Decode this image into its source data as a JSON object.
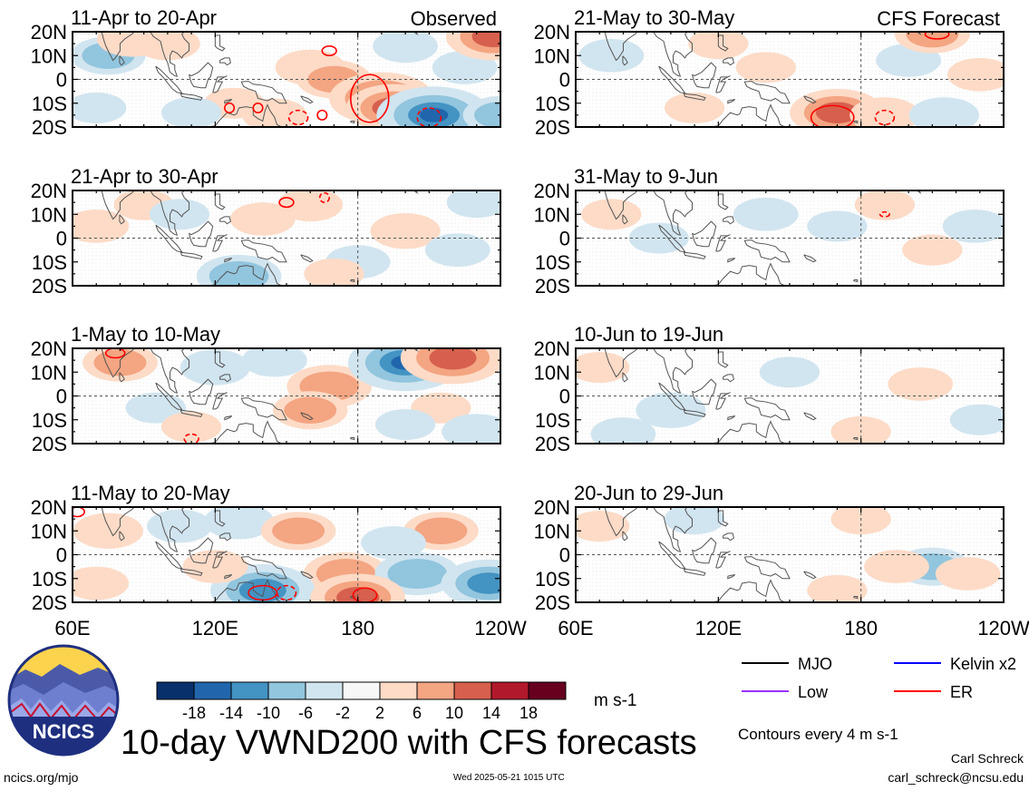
{
  "observed_label": "Observed",
  "forecast_label": "CFS Forecast",
  "main_title": "10-day VWND200 with CFS forecasts",
  "units": "m s-1",
  "contour_note": "Contours every 4 m s-1",
  "colorbar_labels": [
    "-18",
    "-14",
    "-10",
    "-6",
    "-2",
    "2",
    "6",
    "10",
    "14",
    "18"
  ],
  "colorbar_colors": [
    "#08306b",
    "#2166ac",
    "#4393c3",
    "#92c5de",
    "#d1e5f0",
    "#f7f7f7",
    "#fddbc7",
    "#f4a582",
    "#d6604d",
    "#b2182b",
    "#67001f"
  ],
  "legend": [
    {
      "label": "MJO",
      "color": "#000000"
    },
    {
      "label": "Kelvin x2",
      "color": "#0000ff"
    },
    {
      "label": "Low",
      "color": "#9933ff"
    },
    {
      "label": "ER",
      "color": "#ff0000"
    }
  ],
  "credits": {
    "logo_text": "NCICS",
    "site": "ncics.org/mjo",
    "author": "Carl Schreck",
    "email": "carl_schreck@ncsu.edu",
    "date": "Wed 2025-05-21 1015 UTC"
  },
  "chart_data": [
    {
      "type": "heatmap",
      "title": "11-Apr to 20-Apr",
      "variable": "VWND200",
      "units": "m s-1",
      "x_ticks": [
        "60E",
        "120E",
        "180",
        "120W"
      ],
      "y_ticks": [
        "20N",
        "10N",
        "0",
        "10S",
        "20S"
      ],
      "xlim_deg_east": [
        60,
        240
      ],
      "ylim_deg": [
        -20,
        20
      ],
      "anomalies": [
        {
          "lon": 75,
          "lat": 10,
          "value": -6
        },
        {
          "lon": 100,
          "lat": 15,
          "value": 4
        },
        {
          "lon": 85,
          "lat": 17,
          "value": 5
        },
        {
          "lon": 160,
          "lat": 5,
          "value": 5
        },
        {
          "lon": 170,
          "lat": 0,
          "value": 6
        },
        {
          "lon": 190,
          "lat": -8,
          "value": 12
        },
        {
          "lon": 195,
          "lat": -12,
          "value": 10
        },
        {
          "lon": 212,
          "lat": -15,
          "value": -14
        },
        {
          "lon": 200,
          "lat": 14,
          "value": -4
        },
        {
          "lon": 225,
          "lat": 5,
          "value": -4
        },
        {
          "lon": 70,
          "lat": -12,
          "value": -3
        },
        {
          "lon": 237,
          "lat": 18,
          "value": 10
        },
        {
          "lon": 128,
          "lat": -10,
          "value": 3
        },
        {
          "lon": 145,
          "lat": -15,
          "value": 4
        },
        {
          "lon": 240,
          "lat": -15,
          "value": -6
        },
        {
          "lon": 110,
          "lat": -14,
          "value": -3
        }
      ],
      "contours": [
        {
          "wave": "ER",
          "lon": 185,
          "lat": -8,
          "rx": 8,
          "ry": 10,
          "dashed": false
        },
        {
          "wave": "ER",
          "lon": 168,
          "lat": 12,
          "rx": 3,
          "ry": 2,
          "dashed": false
        },
        {
          "wave": "ER",
          "lon": 155,
          "lat": -16,
          "rx": 4,
          "ry": 3,
          "dashed": true
        },
        {
          "wave": "ER",
          "lon": 210,
          "lat": -16,
          "rx": 5,
          "ry": 4,
          "dashed": true
        },
        {
          "wave": "ER",
          "lon": 126,
          "lat": -12,
          "rx": 2,
          "ry": 2,
          "dashed": false
        },
        {
          "wave": "ER",
          "lon": 138,
          "lat": -12,
          "rx": 2,
          "ry": 2,
          "dashed": false
        },
        {
          "wave": "ER",
          "lon": 165,
          "lat": -15,
          "rx": 2,
          "ry": 2,
          "dashed": false
        }
      ]
    },
    {
      "type": "heatmap",
      "title": "21-Apr to 30-Apr",
      "variable": "VWND200",
      "units": "m s-1",
      "x_ticks": [
        "60E",
        "120E",
        "180",
        "120W"
      ],
      "y_ticks": [
        "20N",
        "10N",
        "0",
        "10S",
        "20S"
      ],
      "xlim_deg_east": [
        60,
        240
      ],
      "ylim_deg": [
        -20,
        20
      ],
      "anomalies": [
        {
          "lon": 70,
          "lat": 5,
          "value": 4
        },
        {
          "lon": 90,
          "lat": 14,
          "value": 3
        },
        {
          "lon": 130,
          "lat": -16,
          "value": -8
        },
        {
          "lon": 140,
          "lat": 8,
          "value": 4
        },
        {
          "lon": 160,
          "lat": 14,
          "value": 4
        },
        {
          "lon": 200,
          "lat": 3,
          "value": 5
        },
        {
          "lon": 222,
          "lat": -5,
          "value": -4
        },
        {
          "lon": 180,
          "lat": -10,
          "value": -4
        },
        {
          "lon": 230,
          "lat": 15,
          "value": -3
        },
        {
          "lon": 105,
          "lat": 10,
          "value": -3
        },
        {
          "lon": 170,
          "lat": -15,
          "value": 3
        }
      ],
      "contours": [
        {
          "wave": "ER",
          "lon": 150,
          "lat": 15,
          "rx": 3,
          "ry": 2,
          "dashed": false
        },
        {
          "wave": "ER",
          "lon": 166,
          "lat": 17,
          "rx": 2,
          "ry": 2,
          "dashed": true
        }
      ]
    },
    {
      "type": "heatmap",
      "title": "1-May to 10-May",
      "variable": "VWND200",
      "units": "m s-1",
      "x_ticks": [
        "60E",
        "120E",
        "180",
        "120W"
      ],
      "y_ticks": [
        "20N",
        "10N",
        "0",
        "10S",
        "20S"
      ],
      "xlim_deg_east": [
        60,
        240
      ],
      "ylim_deg": [
        -20,
        20
      ],
      "anomalies": [
        {
          "lon": 80,
          "lat": 14,
          "value": 6
        },
        {
          "lon": 120,
          "lat": 12,
          "value": -5
        },
        {
          "lon": 145,
          "lat": 15,
          "value": -4
        },
        {
          "lon": 168,
          "lat": 4,
          "value": 8
        },
        {
          "lon": 160,
          "lat": -6,
          "value": 6
        },
        {
          "lon": 200,
          "lat": 14,
          "value": -14
        },
        {
          "lon": 220,
          "lat": 16,
          "value": 12
        },
        {
          "lon": 215,
          "lat": -5,
          "value": 3
        },
        {
          "lon": 95,
          "lat": -5,
          "value": -3
        },
        {
          "lon": 230,
          "lat": -15,
          "value": -5
        },
        {
          "lon": 200,
          "lat": -12,
          "value": -3
        },
        {
          "lon": 110,
          "lat": -13,
          "value": 3
        }
      ],
      "contours": [
        {
          "wave": "ER",
          "lon": 78,
          "lat": 18,
          "rx": 4,
          "ry": 2,
          "dashed": false
        },
        {
          "wave": "ER",
          "lon": 110,
          "lat": -18,
          "rx": 3,
          "ry": 2,
          "dashed": true
        }
      ]
    },
    {
      "type": "heatmap",
      "title": "11-May to 20-May",
      "variable": "VWND200",
      "units": "m s-1",
      "x_ticks": [
        "60E",
        "120E",
        "180",
        "120W"
      ],
      "y_ticks": [
        "20N",
        "10N",
        "0",
        "10S",
        "20S"
      ],
      "xlim_deg_east": [
        60,
        240
      ],
      "ylim_deg": [
        -20,
        20
      ],
      "anomalies": [
        {
          "lon": 75,
          "lat": 10,
          "value": 5
        },
        {
          "lon": 105,
          "lat": 12,
          "value": -4
        },
        {
          "lon": 130,
          "lat": 14,
          "value": -5
        },
        {
          "lon": 155,
          "lat": 10,
          "value": 6
        },
        {
          "lon": 175,
          "lat": -8,
          "value": 8
        },
        {
          "lon": 140,
          "lat": -15,
          "value": -12
        },
        {
          "lon": 205,
          "lat": -8,
          "value": -8
        },
        {
          "lon": 215,
          "lat": 10,
          "value": 6
        },
        {
          "lon": 235,
          "lat": -12,
          "value": -10
        },
        {
          "lon": 180,
          "lat": -18,
          "value": 10
        },
        {
          "lon": 120,
          "lat": -5,
          "value": 4
        },
        {
          "lon": 70,
          "lat": -12,
          "value": 4
        },
        {
          "lon": 195,
          "lat": 5,
          "value": -4
        }
      ],
      "contours": [
        {
          "wave": "ER",
          "lon": 140,
          "lat": -16,
          "rx": 6,
          "ry": 3,
          "dashed": false
        },
        {
          "wave": "ER",
          "lon": 150,
          "lat": -16,
          "rx": 4,
          "ry": 3,
          "dashed": true
        },
        {
          "wave": "ER",
          "lon": 183,
          "lat": -17,
          "rx": 5,
          "ry": 3,
          "dashed": false
        },
        {
          "wave": "ER",
          "lon": 62,
          "lat": 18,
          "rx": 3,
          "ry": 2,
          "dashed": false
        }
      ]
    },
    {
      "type": "heatmap",
      "title": "21-May to 30-May",
      "variable": "VWND200",
      "units": "m s-1",
      "x_ticks": [
        "60E",
        "120E",
        "180",
        "120W"
      ],
      "y_ticks": [
        "20N",
        "10N",
        "0",
        "10S",
        "20S"
      ],
      "xlim_deg_east": [
        60,
        240
      ],
      "ylim_deg": [
        -20,
        20
      ],
      "anomalies": [
        {
          "lon": 75,
          "lat": 10,
          "value": -4
        },
        {
          "lon": 120,
          "lat": 15,
          "value": 3
        },
        {
          "lon": 140,
          "lat": 5,
          "value": 3
        },
        {
          "lon": 170,
          "lat": -14,
          "value": 10
        },
        {
          "lon": 190,
          "lat": -15,
          "value": 5
        },
        {
          "lon": 200,
          "lat": 8,
          "value": -4
        },
        {
          "lon": 230,
          "lat": 2,
          "value": 4
        },
        {
          "lon": 215,
          "lat": -15,
          "value": -5
        },
        {
          "lon": 110,
          "lat": -12,
          "value": 3
        },
        {
          "lon": 210,
          "lat": 19,
          "value": 6
        }
      ],
      "contours": [
        {
          "wave": "ER",
          "lon": 168,
          "lat": -16,
          "rx": 9,
          "ry": 5,
          "dashed": false
        },
        {
          "wave": "ER",
          "lon": 190,
          "lat": -16,
          "rx": 4,
          "ry": 3,
          "dashed": true
        },
        {
          "wave": "ER",
          "lon": 212,
          "lat": 19,
          "rx": 5,
          "ry": 2,
          "dashed": false
        }
      ]
    },
    {
      "type": "heatmap",
      "title": "31-May to 9-Jun",
      "variable": "VWND200",
      "units": "m s-1",
      "x_ticks": [
        "60E",
        "120E",
        "180",
        "120W"
      ],
      "y_ticks": [
        "20N",
        "10N",
        "0",
        "10S",
        "20S"
      ],
      "xlim_deg_east": [
        60,
        240
      ],
      "ylim_deg": [
        -20,
        20
      ],
      "anomalies": [
        {
          "lon": 75,
          "lat": 10,
          "value": 3
        },
        {
          "lon": 95,
          "lat": 0,
          "value": -3
        },
        {
          "lon": 140,
          "lat": 10,
          "value": -4
        },
        {
          "lon": 170,
          "lat": 5,
          "value": -3
        },
        {
          "lon": 210,
          "lat": -5,
          "value": 3
        },
        {
          "lon": 228,
          "lat": 5,
          "value": -4
        },
        {
          "lon": 190,
          "lat": 14,
          "value": 3
        }
      ],
      "contours": [
        {
          "wave": "ER",
          "lon": 190,
          "lat": 10,
          "rx": 2,
          "ry": 1,
          "dashed": true
        }
      ]
    },
    {
      "type": "heatmap",
      "title": "10-Jun to 19-Jun",
      "variable": "VWND200",
      "units": "m s-1",
      "x_ticks": [
        "60E",
        "120E",
        "180",
        "120W"
      ],
      "y_ticks": [
        "20N",
        "10N",
        "0",
        "10S",
        "20S"
      ],
      "xlim_deg_east": [
        60,
        240
      ],
      "ylim_deg": [
        -20,
        20
      ],
      "anomalies": [
        {
          "lon": 70,
          "lat": 12,
          "value": 3
        },
        {
          "lon": 100,
          "lat": -6,
          "value": -5
        },
        {
          "lon": 80,
          "lat": -16,
          "value": -4
        },
        {
          "lon": 150,
          "lat": 10,
          "value": -3
        },
        {
          "lon": 205,
          "lat": 5,
          "value": 4
        },
        {
          "lon": 230,
          "lat": -10,
          "value": -3
        },
        {
          "lon": 180,
          "lat": -15,
          "value": 3
        }
      ],
      "contours": []
    },
    {
      "type": "heatmap",
      "title": "20-Jun to 29-Jun",
      "variable": "VWND200",
      "units": "m s-1",
      "x_ticks": [
        "60E",
        "120E",
        "180",
        "120W"
      ],
      "y_ticks": [
        "20N",
        "10N",
        "0",
        "10S",
        "20S"
      ],
      "xlim_deg_east": [
        60,
        240
      ],
      "ylim_deg": [
        -20,
        20
      ],
      "anomalies": [
        {
          "lon": 70,
          "lat": 12,
          "value": 3
        },
        {
          "lon": 110,
          "lat": 15,
          "value": -3
        },
        {
          "lon": 210,
          "lat": -5,
          "value": -6
        },
        {
          "lon": 195,
          "lat": -5,
          "value": 4
        },
        {
          "lon": 225,
          "lat": -8,
          "value": 4
        },
        {
          "lon": 180,
          "lat": 15,
          "value": 3
        },
        {
          "lon": 170,
          "lat": -15,
          "value": 3
        }
      ],
      "contours": []
    }
  ]
}
